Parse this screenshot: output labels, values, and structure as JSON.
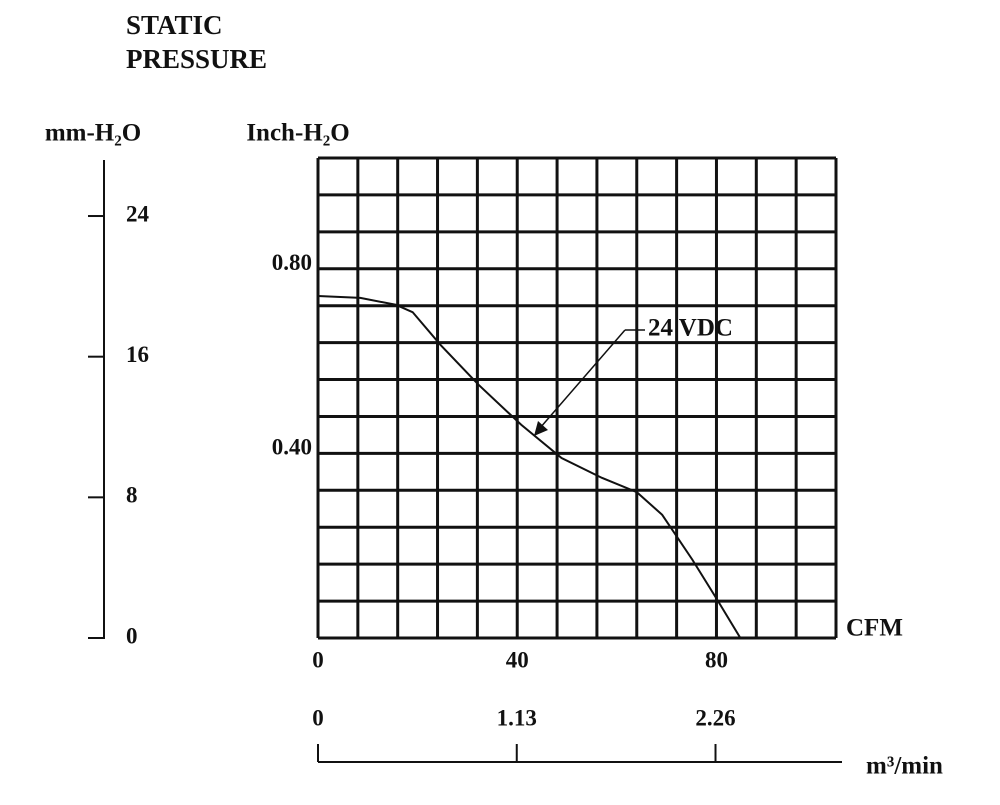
{
  "chart_data": {
    "type": "line",
    "title": [
      "STATIC",
      "PRESSURE"
    ],
    "y_label": "Inch-H₂O",
    "y2_label": "mm-H₂O",
    "x_label": "CFM",
    "x2_label": "m³/min",
    "x": [
      0,
      8.5,
      15.6,
      19,
      24.6,
      32.3,
      40.8,
      48.9,
      57,
      64,
      69.1,
      75.2,
      80.2,
      84.8
    ],
    "series": [
      {
        "name": "24 VDC",
        "color": "#111111",
        "values": [
          0.741,
          0.737,
          0.722,
          0.706,
          0.635,
          0.548,
          0.462,
          0.39,
          0.347,
          0.316,
          0.267,
          0.169,
          0.082,
          0
        ]
      }
    ],
    "xlim": [
      0,
      104
    ],
    "xticks": [
      0,
      40,
      80
    ],
    "ylim": [
      0,
      1.04
    ],
    "yticks": [
      {
        "value": 0.4,
        "label": "0.40"
      },
      {
        "value": 0.8,
        "label": "0.80"
      }
    ],
    "y2lim": [
      0,
      27.3
    ],
    "y2ticks": [
      0,
      8,
      16,
      24
    ],
    "x2lim": [
      0,
      2.945
    ],
    "x2ticks": [
      0,
      1.13,
      2.26
    ],
    "grid": true
  }
}
